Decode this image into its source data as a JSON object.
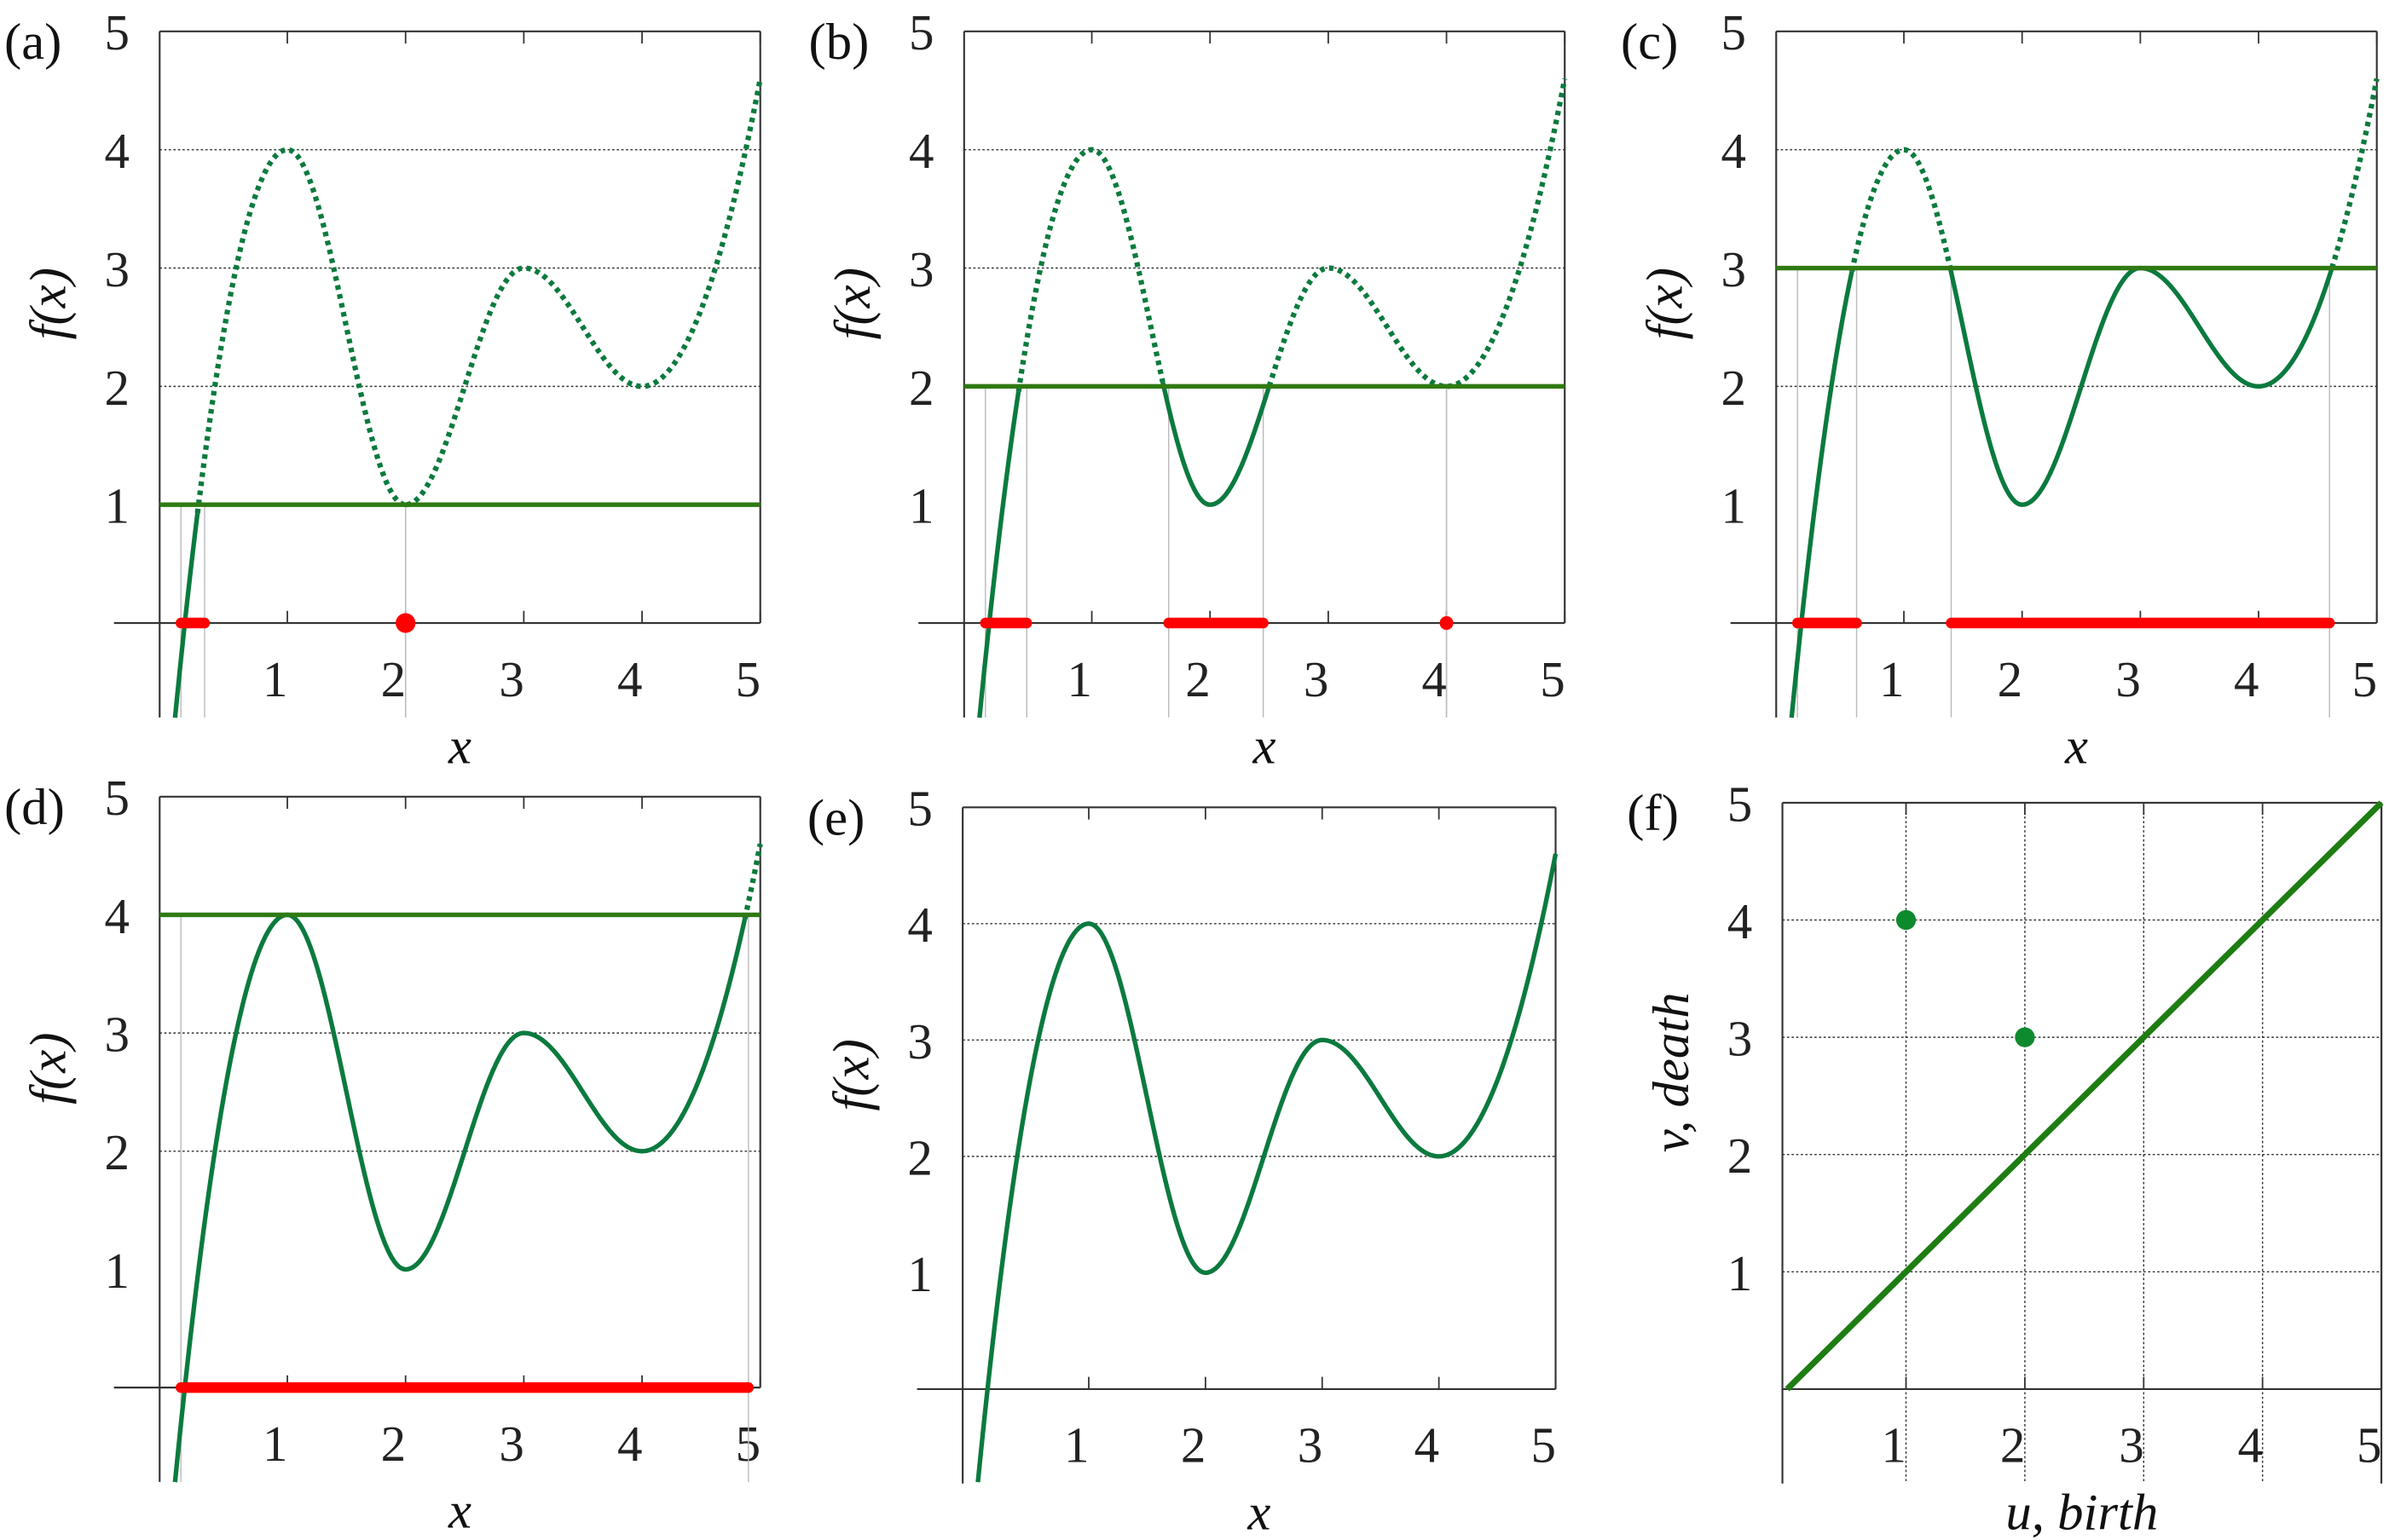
{
  "colors": {
    "curve": "#0b7a3e",
    "level": "#2f7a12",
    "sublevel": "#ff0000",
    "grid": "#333333",
    "boundary": "#bbbbbb"
  },
  "chart_data": [
    {
      "id": "a",
      "type": "line",
      "panel_label": "(a)",
      "xlabel": "x",
      "ylabel": "f(x)",
      "xlim": [
        -0.08,
        5
      ],
      "ylim": [
        -0.8,
        5
      ],
      "xticks": [
        "1",
        "2",
        "3",
        "4",
        "5"
      ],
      "yticks": [
        "1",
        "2",
        "3",
        "4",
        "5"
      ],
      "curve_points": [
        [
          0.05,
          -0.8
        ],
        [
          1,
          4
        ],
        [
          2,
          1
        ],
        [
          3,
          3
        ],
        [
          4,
          2
        ],
        [
          5,
          4.6
        ]
      ],
      "threshold": 1,
      "sublevel_intervals": [
        [
          0.1,
          0.3
        ],
        [
          2,
          2
        ]
      ]
    },
    {
      "id": "b",
      "type": "line",
      "panel_label": "(b)",
      "xlabel": "x",
      "ylabel": "f(x)",
      "xlim": [
        -0.08,
        5
      ],
      "ylim": [
        -0.8,
        5
      ],
      "xticks": [
        "1",
        "2",
        "3",
        "4",
        "5"
      ],
      "yticks": [
        "1",
        "2",
        "3",
        "4",
        "5"
      ],
      "curve_points": [
        [
          0.05,
          -0.8
        ],
        [
          1,
          4
        ],
        [
          2,
          1
        ],
        [
          3,
          3
        ],
        [
          4,
          2
        ],
        [
          5,
          4.6
        ]
      ],
      "threshold": 2,
      "sublevel_intervals": [
        [
          0.1,
          0.45
        ],
        [
          1.65,
          2.45
        ],
        [
          4,
          4
        ]
      ]
    },
    {
      "id": "c",
      "type": "line",
      "panel_label": "(c)",
      "xlabel": "x",
      "ylabel": "f(x)",
      "xlim": [
        -0.08,
        5
      ],
      "ylim": [
        -0.8,
        5
      ],
      "xticks": [
        "1",
        "2",
        "3",
        "4",
        "5"
      ],
      "yticks": [
        "1",
        "2",
        "3",
        "4",
        "5"
      ],
      "curve_points": [
        [
          0.05,
          -0.8
        ],
        [
          1,
          4
        ],
        [
          2,
          1
        ],
        [
          3,
          3
        ],
        [
          4,
          2
        ],
        [
          5,
          4.6
        ]
      ],
      "threshold": 3,
      "sublevel_intervals": [
        [
          0.1,
          0.6
        ],
        [
          1.4,
          4.6
        ]
      ]
    },
    {
      "id": "d",
      "type": "line",
      "panel_label": "(d)",
      "xlabel": "x",
      "ylabel": "f(x)",
      "xlim": [
        -0.08,
        5
      ],
      "ylim": [
        -0.8,
        5
      ],
      "xticks": [
        "1",
        "2",
        "3",
        "4",
        "5"
      ],
      "yticks": [
        "1",
        "2",
        "3",
        "4",
        "5"
      ],
      "curve_points": [
        [
          0.05,
          -0.8
        ],
        [
          1,
          4
        ],
        [
          2,
          1
        ],
        [
          3,
          3
        ],
        [
          4,
          2
        ],
        [
          5,
          4.6
        ]
      ],
      "threshold": 4,
      "sublevel_intervals": [
        [
          0.1,
          4.9
        ]
      ]
    },
    {
      "id": "e",
      "type": "line",
      "panel_label": "(e)",
      "xlabel": "x",
      "ylabel": "f(x)",
      "xlim": [
        -0.08,
        5
      ],
      "ylim": [
        -0.8,
        5
      ],
      "xticks": [
        "1",
        "2",
        "3",
        "4",
        "5"
      ],
      "yticks": [
        "1",
        "2",
        "3",
        "4",
        "5"
      ],
      "curve_points": [
        [
          0.05,
          -0.8
        ],
        [
          1,
          4
        ],
        [
          2,
          1
        ],
        [
          3,
          3
        ],
        [
          4,
          2
        ],
        [
          5,
          4.6
        ]
      ],
      "threshold": null,
      "sublevel_intervals": []
    },
    {
      "id": "f",
      "type": "scatter",
      "panel_label": "(f)",
      "xlabel": "u, birth",
      "ylabel": "v, death",
      "xlim": [
        0,
        5
      ],
      "ylim": [
        -0.8,
        5
      ],
      "xticks": [
        "1",
        "2",
        "3",
        "4",
        "5"
      ],
      "yticks": [
        "1",
        "2",
        "3",
        "4",
        "5"
      ],
      "points": [
        [
          1,
          4
        ],
        [
          2,
          3
        ]
      ],
      "diagonal": [
        [
          0,
          0
        ],
        [
          5,
          5
        ]
      ]
    }
  ]
}
